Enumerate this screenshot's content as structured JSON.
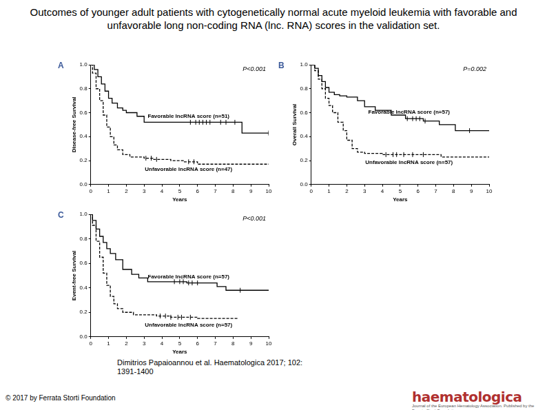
{
  "header": {
    "title": "Outcomes of younger adult patients with cytogenetically normal acute myeloid leukemia with favorable and unfavorable long non-coding RNA (lnc. RNA) scores in the validation set."
  },
  "chart_data": [
    {
      "type": "line",
      "panel": "A",
      "annotation": "P<0.001",
      "x_label": "Years",
      "y_label": "Disease-free Survival",
      "xlim": [
        0,
        10
      ],
      "xticks": [
        0,
        1,
        2,
        3,
        4,
        5,
        6,
        7,
        8,
        9,
        10
      ],
      "ylim": [
        0,
        1
      ],
      "yticks": [
        {
          "value": 0,
          "label": "0.0"
        },
        0.2,
        0.4,
        0.6,
        0.8,
        {
          "value": 1,
          "label": "1.0"
        }
      ],
      "grid": false,
      "series": [
        {
          "name": "Favorable lncRNA score (n=51)",
          "color": "#000000",
          "line_style": "solid",
          "x": [
            0,
            0.2,
            0.4,
            0.6,
            0.8,
            1.0,
            1.2,
            1.5,
            1.8,
            2.0,
            2.6,
            3.0,
            8.5,
            10
          ],
          "values": [
            1,
            0.96,
            0.9,
            0.84,
            0.78,
            0.72,
            0.68,
            0.64,
            0.62,
            0.6,
            0.57,
            0.52,
            0.43,
            0.43
          ],
          "censored": [
            5.6,
            5.9,
            6.1,
            6.3,
            6.5,
            6.7,
            7.3,
            7.6,
            8.1,
            10
          ]
        },
        {
          "name": "Unfavorable lncRNA score (n=47)",
          "color": "#000000",
          "line_style": "dashed",
          "x": [
            0,
            0.1,
            0.3,
            0.5,
            0.7,
            0.9,
            1.1,
            1.3,
            1.5,
            1.8,
            2.2,
            3.0,
            3.5,
            4.5,
            5.2,
            6.0,
            10
          ],
          "values": [
            1,
            0.93,
            0.8,
            0.7,
            0.58,
            0.48,
            0.4,
            0.33,
            0.29,
            0.25,
            0.23,
            0.22,
            0.21,
            0.2,
            0.19,
            0.17,
            0.17
          ],
          "censored": [
            3.1,
            3.4,
            3.7,
            5.5,
            5.8
          ]
        }
      ]
    },
    {
      "type": "line",
      "panel": "B",
      "annotation": "P=0.002",
      "x_label": "Years",
      "y_label": "Overall Survival",
      "xlim": [
        0,
        10
      ],
      "xticks": [
        0,
        1,
        2,
        3,
        4,
        5,
        6,
        7,
        8,
        9,
        10
      ],
      "ylim": [
        0,
        1
      ],
      "yticks": [
        {
          "value": 0,
          "label": "0.0"
        },
        0.2,
        0.4,
        0.6,
        0.8,
        {
          "value": 1,
          "label": "1.0"
        }
      ],
      "grid": false,
      "series": [
        {
          "name": "Favorable lncRNA score (n=57)",
          "color": "#000000",
          "line_style": "solid",
          "x": [
            0,
            0.2,
            0.4,
            0.6,
            0.8,
            1.0,
            1.3,
            1.6,
            2.0,
            2.6,
            3.0,
            3.6,
            4.5,
            5.3,
            6.3,
            7.2,
            8.1,
            10
          ],
          "values": [
            1,
            0.97,
            0.91,
            0.86,
            0.81,
            0.77,
            0.75,
            0.74,
            0.73,
            0.7,
            0.65,
            0.62,
            0.58,
            0.55,
            0.53,
            0.5,
            0.45,
            0.45
          ],
          "censored": [
            5.4,
            5.7,
            5.9,
            6.1,
            6.4,
            8.9
          ]
        },
        {
          "name": "Unfavorable lncRNA score (n=57)",
          "color": "#000000",
          "line_style": "dashed",
          "x": [
            0,
            0.2,
            0.4,
            0.6,
            0.8,
            1.0,
            1.2,
            1.5,
            1.8,
            2.0,
            2.3,
            2.6,
            3.0,
            4.0,
            7.3,
            10
          ],
          "values": [
            1,
            0.95,
            0.88,
            0.8,
            0.72,
            0.66,
            0.6,
            0.52,
            0.45,
            0.37,
            0.3,
            0.27,
            0.26,
            0.25,
            0.23,
            0.23
          ],
          "censored": [
            4.2,
            4.6,
            4.8,
            5.2,
            5.7,
            6.3
          ]
        }
      ]
    },
    {
      "type": "line",
      "panel": "C",
      "annotation": "P<0.001",
      "x_label": "Years",
      "y_label": "Event-free Survival",
      "xlim": [
        0,
        10
      ],
      "xticks": [
        0,
        1,
        2,
        3,
        4,
        5,
        6,
        7,
        8,
        9,
        10
      ],
      "ylim": [
        0,
        1
      ],
      "yticks": [
        {
          "value": 0,
          "label": "0.0"
        },
        0.2,
        0.4,
        0.6,
        0.8,
        {
          "value": 1,
          "label": "1.0"
        }
      ],
      "grid": false,
      "series": [
        {
          "name": "Favorable lncRNA score (n=57)",
          "color": "#000000",
          "line_style": "solid",
          "x": [
            0,
            0.1,
            0.3,
            0.5,
            0.7,
            0.9,
            1.1,
            1.4,
            1.8,
            2.3,
            2.7,
            3.2,
            5.4,
            7.1,
            7.6,
            10
          ],
          "values": [
            1,
            0.95,
            0.88,
            0.82,
            0.77,
            0.72,
            0.68,
            0.63,
            0.55,
            0.51,
            0.48,
            0.45,
            0.44,
            0.41,
            0.38,
            0.38
          ],
          "censored": [
            4.7,
            5.0,
            5.2,
            5.5,
            5.7,
            6.0,
            8.4
          ]
        },
        {
          "name": "Unfavorable lncRNA score (n=57)",
          "color": "#000000",
          "line_style": "dashed",
          "x": [
            0,
            0.1,
            0.3,
            0.5,
            0.7,
            0.9,
            1.1,
            1.3,
            1.5,
            1.8,
            2.4,
            3.7,
            4.5,
            6.0,
            8.3
          ],
          "values": [
            1,
            0.91,
            0.78,
            0.65,
            0.52,
            0.42,
            0.33,
            0.27,
            0.23,
            0.2,
            0.18,
            0.17,
            0.16,
            0.15,
            0.15
          ],
          "censored": [
            3.9,
            4.2,
            4.5,
            4.9,
            5.1,
            5.6
          ]
        }
      ]
    }
  ],
  "footer": {
    "citation": "Dimitrios Papaioannou et al. Haematologica 2017; 102: 1391-1400",
    "copyright": "© 2017 by Ferrata Storti Foundation",
    "logo": "haematologica",
    "logo_subtitle": "Journal of the European Hematology Association. Published by the Ferrata Storti Foundation"
  }
}
